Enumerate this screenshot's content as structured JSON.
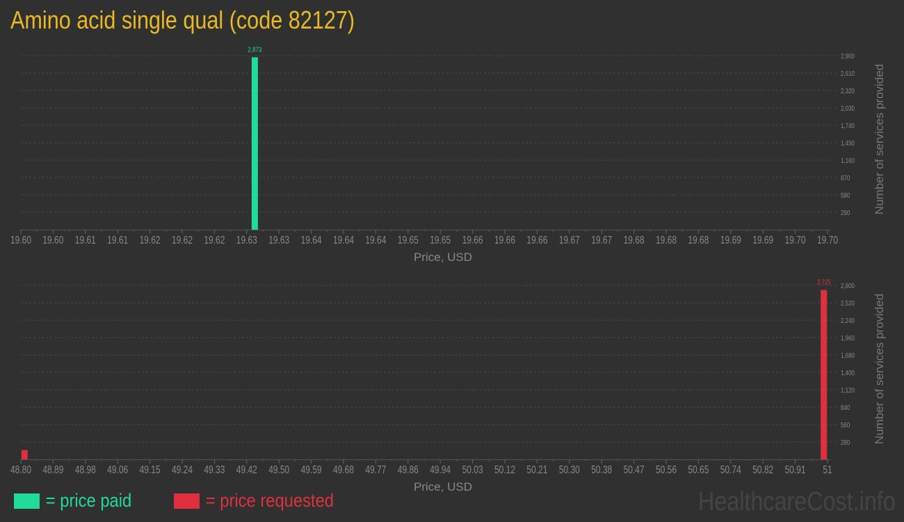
{
  "title": "Amino acid single qual (code 82127)",
  "colors": {
    "paid": "#1fdc9a",
    "requested": "#e03040",
    "title": "#e8b923",
    "axis_text": "#888888"
  },
  "legend": {
    "paid": "= price paid",
    "requested": "= price requested"
  },
  "brand": "HealthcareCost.info",
  "chart_data": [
    {
      "type": "bar",
      "xlabel": "Price, USD",
      "ylabel": "Number of services provided",
      "x_ticks": [
        "19.60",
        "19.60",
        "19.61",
        "19.61",
        "19.62",
        "19.62",
        "19.62",
        "19.63",
        "19.63",
        "19.64",
        "19.64",
        "19.64",
        "19.65",
        "19.65",
        "19.66",
        "19.66",
        "19.66",
        "19.67",
        "19.67",
        "19.68",
        "19.68",
        "19.68",
        "19.69",
        "19.69",
        "19.70",
        "19.70"
      ],
      "xlim": [
        19.6,
        19.7
      ],
      "y_ticks": [
        "290",
        "580",
        "870",
        "1,160",
        "1,450",
        "1,740",
        "2,030",
        "2,320",
        "2,610",
        "2,900"
      ],
      "ylim": [
        0,
        2900
      ],
      "grid": true,
      "series": [
        {
          "name": "price paid",
          "color": "#1fdc9a",
          "points": [
            {
              "x": 19.629,
              "y": 2873,
              "label": "2,873"
            }
          ]
        }
      ]
    },
    {
      "type": "bar",
      "xlabel": "Price, USD",
      "ylabel": "Number of services provided",
      "x_ticks": [
        "48.80",
        "48.89",
        "48.98",
        "49.06",
        "49.15",
        "49.24",
        "49.33",
        "49.42",
        "49.50",
        "49.59",
        "49.68",
        "49.77",
        "49.86",
        "49.94",
        "50.03",
        "50.12",
        "50.21",
        "50.30",
        "50.38",
        "50.47",
        "50.56",
        "50.65",
        "50.74",
        "50.82",
        "50.91",
        "51"
      ],
      "xlim": [
        48.8,
        51
      ],
      "y_ticks": [
        "280",
        "560",
        "840",
        "1,120",
        "1,400",
        "1,680",
        "1,960",
        "2,240",
        "2,520",
        "2,800"
      ],
      "ylim": [
        0,
        2800
      ],
      "grid": true,
      "series": [
        {
          "name": "price requested",
          "color": "#e03040",
          "points": [
            {
              "x": 48.81,
              "y": 150,
              "label": ""
            },
            {
              "x": 50.99,
              "y": 2725,
              "label": "2,725"
            }
          ]
        }
      ]
    }
  ]
}
